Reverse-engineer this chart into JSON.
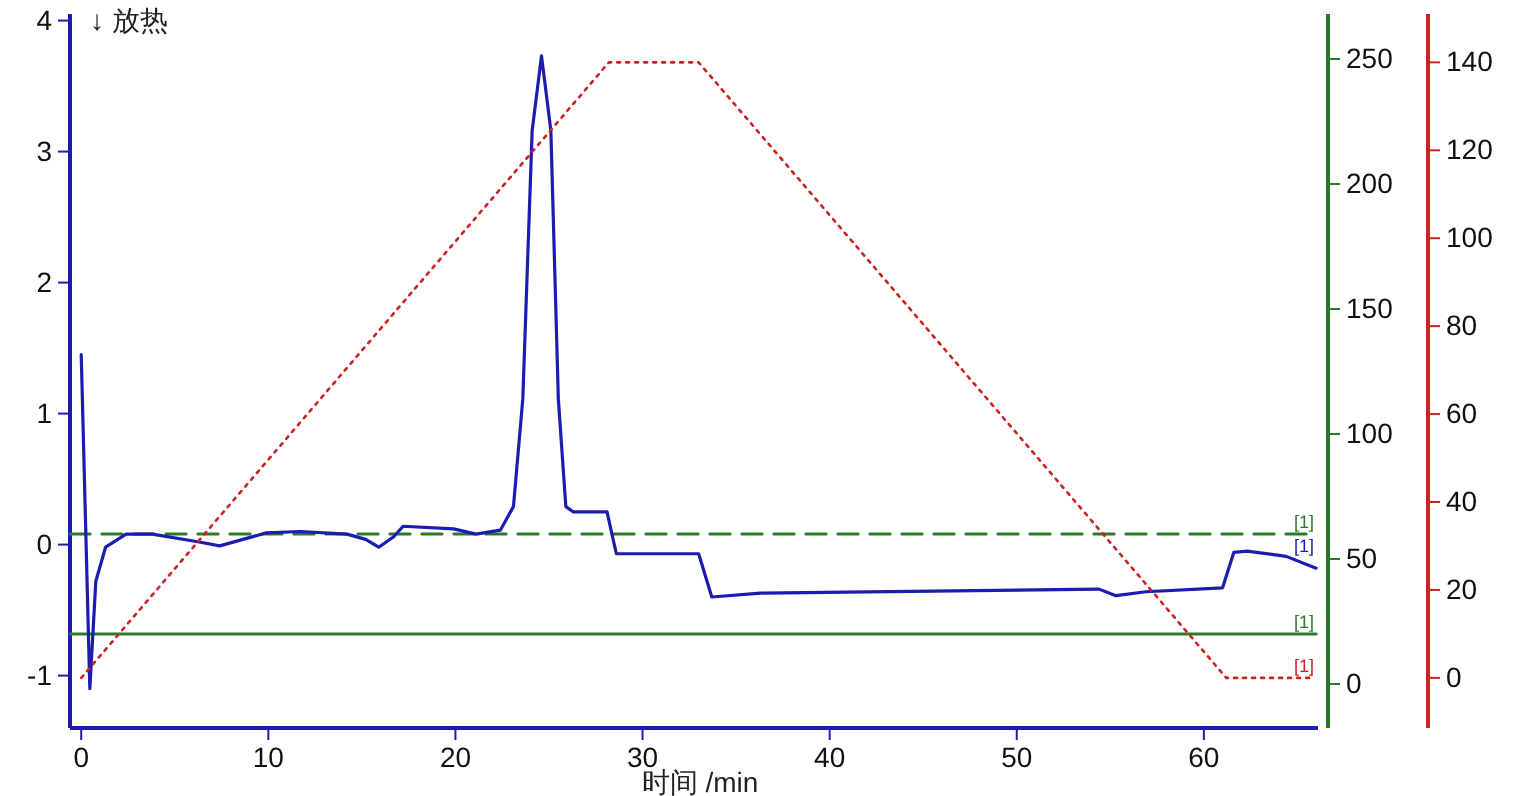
{
  "chart_data": {
    "type": "line",
    "xlabel": "时间 /min",
    "annotations": [
      "↓ 放热"
    ],
    "xlim": [
      -0.6,
      66.1
    ],
    "xticks": [
      0,
      10,
      20,
      30,
      40,
      50,
      60
    ],
    "ylim": [
      -1.4,
      4.05
    ],
    "yticks": [
      -1,
      0,
      1,
      2,
      3,
      4
    ],
    "y2lim": [
      -17.6,
      268
    ],
    "y2ticks": [
      0,
      50,
      100,
      150,
      200,
      250
    ],
    "y3lim": [
      -11.4,
      151
    ],
    "y3ticks": [
      0,
      20,
      40,
      60,
      80,
      100,
      120,
      140
    ],
    "series": [
      {
        "name": "[1]",
        "color": "#2a7a2a",
        "line_style": "dashed",
        "axis": "y2",
        "x": [
          -0.6,
          66.0
        ],
        "values": [
          60,
          60
        ]
      },
      {
        "name": "[1]",
        "color": "#2a7a2a",
        "line_style": "solid",
        "axis": "y2",
        "x": [
          -0.6,
          66.0
        ],
        "values": [
          20,
          20
        ]
      },
      {
        "name": "[1]",
        "color": "#1c1cb0",
        "line_style": "solid",
        "x": [
          0,
          0.46,
          0.78,
          1.3,
          2.4,
          3.8,
          6.3,
          7.4,
          9.9,
          11.7,
          14.2,
          15.2,
          15.9,
          16.7,
          17.2,
          19.9,
          21.1,
          22.4,
          23.1,
          23.6,
          24.1,
          24.6,
          25.1,
          25.5,
          25.9,
          26.3,
          28.1,
          28.6,
          33.0,
          33.7,
          36.3,
          54.4,
          55.3,
          56.9,
          61.0,
          61.6,
          62.3,
          64.4,
          66.0
        ],
        "values": [
          1.45,
          -1.1,
          -0.28,
          -0.02,
          0.08,
          0.08,
          0.02,
          -0.01,
          0.09,
          0.1,
          0.08,
          0.04,
          -0.02,
          0.06,
          0.14,
          0.12,
          0.08,
          0.11,
          0.29,
          1.11,
          3.16,
          3.73,
          3.16,
          1.11,
          0.29,
          0.25,
          0.25,
          -0.07,
          -0.07,
          -0.4,
          -0.37,
          -0.34,
          -0.39,
          -0.36,
          -0.33,
          -0.06,
          -0.05,
          -0.09,
          -0.18
        ]
      },
      {
        "name": "[1]",
        "color": "#cc2222",
        "line_style": "dotted",
        "axis": "y3",
        "x": [
          0,
          28.2,
          33.0,
          61.2,
          65.8
        ],
        "values": [
          0,
          140,
          140,
          0,
          0
        ]
      }
    ]
  }
}
